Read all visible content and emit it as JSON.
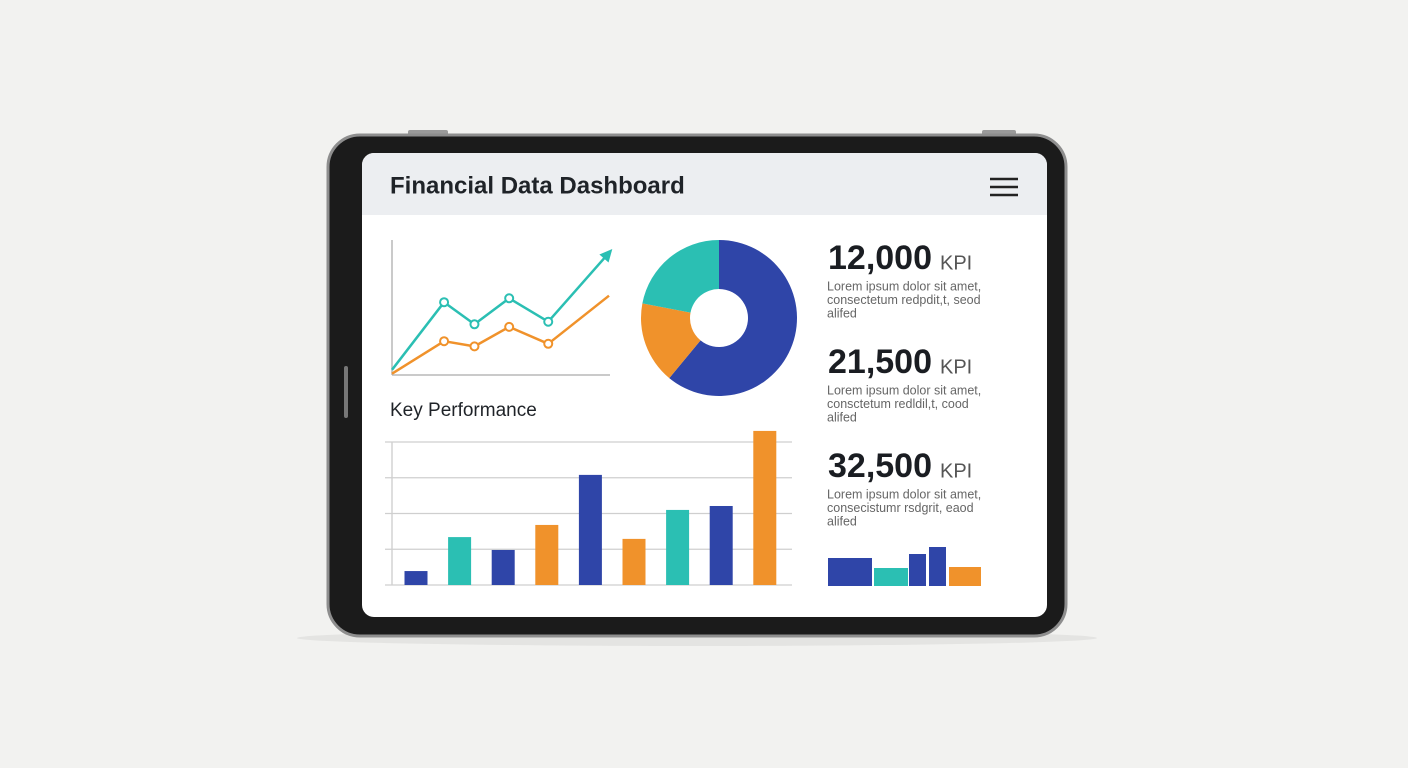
{
  "header": {
    "title": "Financial Data Dashboard"
  },
  "line_chart": {
    "type": "line",
    "x": [
      0,
      24,
      38,
      54,
      72,
      100
    ],
    "xlim": [
      0,
      100
    ],
    "ylim": [
      0,
      100
    ],
    "series": [
      {
        "color": "#2bbfb3",
        "values": [
          4,
          56,
          39,
          59,
          41,
          94
        ]
      },
      {
        "color": "#f0922b",
        "values": [
          1,
          26,
          22,
          37,
          24,
          61
        ]
      }
    ]
  },
  "donut_chart": {
    "type": "pie",
    "values": [
      61,
      17,
      22
    ],
    "colors": [
      "#2f45a8",
      "#f0922b",
      "#2bbfb3"
    ]
  },
  "bar_chart": {
    "type": "bar",
    "title": "Key Performance",
    "values": [
      0.39,
      1.34,
      0.98,
      1.68,
      3.08,
      1.29,
      2.1,
      2.21,
      4.31
    ],
    "colors": [
      "#2f45a8",
      "#2bbfb3",
      "#2f45a8",
      "#f0922b",
      "#2f45a8",
      "#f0922b",
      "#2bbfb3",
      "#2f45a8",
      "#f0922b"
    ],
    "ylim": [
      0,
      4
    ],
    "yticks": [
      0,
      1,
      2,
      3,
      4
    ],
    "grid": true
  },
  "kpis": [
    {
      "value": "12,000",
      "unit": "KPI",
      "text": [
        "Lorem ipsum dolor sit amet,",
        "consectetum redpdit,t, seod",
        "alifed"
      ]
    },
    {
      "value": "21,500",
      "unit": "KPI",
      "text": [
        "Lorem ipsum dolor sit amet,",
        "consctetum redldil,t, cood",
        "alifed"
      ]
    },
    {
      "value": "32,500",
      "unit": "KPI",
      "text": [
        "Lorem ipsum dolor sit amet,",
        "consecistumr rsdgrit, eaod",
        "alifed"
      ]
    }
  ],
  "mini_bar_chart": {
    "type": "bar",
    "values": [
      28,
      18,
      32,
      39,
      19
    ],
    "colors": [
      "#2f45a8",
      "#2bbfb3",
      "#2f45a8",
      "#2f45a8",
      "#f0922b"
    ],
    "ylim": [
      0,
      40
    ]
  }
}
